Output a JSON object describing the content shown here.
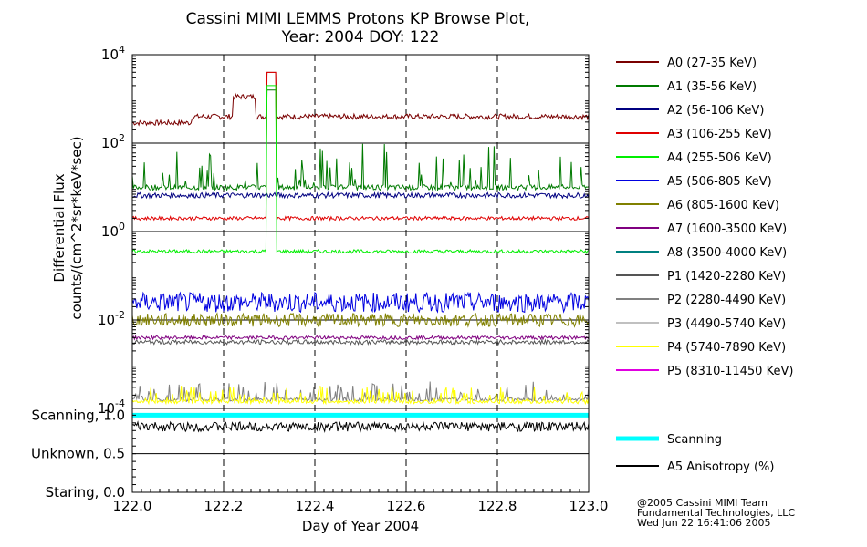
{
  "chart_data": {
    "type": "line",
    "title": "Cassini MIMI LEMMS Protons KP Browse Plot,",
    "subtitle": "Year: 2004 DOY: 122",
    "xlabel": "Day of Year 2004",
    "ylabel": "Differential Flux",
    "ylabel2": "counts/(cm^2*sr*keV*sec)",
    "xlim": [
      122.0,
      123.0
    ],
    "x_ticks": [
      "122.0",
      "122.2",
      "122.4",
      "122.6",
      "122.8",
      "123.0"
    ],
    "ylim_log": [
      -4,
      4
    ],
    "y_ticks": [
      {
        "base": "10",
        "exp": "4"
      },
      {
        "base": "10",
        "exp": "2"
      },
      {
        "base": "10",
        "exp": "0"
      },
      {
        "base": "10",
        "exp": "-2"
      },
      {
        "base": "10",
        "exp": "-4"
      }
    ],
    "status_labels": [
      "Scanning, 1.0",
      "Unknown, 0.5",
      "Staring, 0.0"
    ],
    "legend_position": "right",
    "series": [
      {
        "name": "A0 (27-35 KeV)",
        "color": "#7a0000",
        "level": 2.6
      },
      {
        "name": "A1 (35-56 KeV)",
        "color": "#007a00",
        "level": 1.0
      },
      {
        "name": "A2 (56-106 KeV)",
        "color": "#000080",
        "level": 0.82
      },
      {
        "name": "A3 (106-255 KeV)",
        "color": "#e00000",
        "level": 0.3
      },
      {
        "name": "A4 (255-506 KeV)",
        "color": "#00ee00",
        "level": -0.45
      },
      {
        "name": "A5 (506-805 KeV)",
        "color": "#0000e0",
        "level": -1.6
      },
      {
        "name": "A6 (805-1600 KeV)",
        "color": "#808000",
        "level": -2.0
      },
      {
        "name": "A7 (1600-3500 KeV)",
        "color": "#800080",
        "level": -2.4
      },
      {
        "name": "A8 (3500-4000 KeV)",
        "color": "#008080",
        "level": null
      },
      {
        "name": "P1 (1420-2280 KeV)",
        "color": "#555555",
        "level": -2.5
      },
      {
        "name": "P2 (2280-4490 KeV)",
        "color": "#808080",
        "level": -3.8
      },
      {
        "name": "P3 (4490-5740 KeV)",
        "color": "#c0c0c0",
        "level": null
      },
      {
        "name": "P4 (5740-7890 KeV)",
        "color": "#ffff00",
        "level": -3.85
      },
      {
        "name": "P5 (8310-11450 KeV)",
        "color": "#e000e0",
        "level": null
      }
    ],
    "status_series": [
      {
        "name": "Scanning",
        "color": "#00ffff",
        "value": 1.0
      },
      {
        "name": "A5 Anisotropy (%)",
        "color": "#000000",
        "value": 0.85
      }
    ],
    "grid": true
  },
  "credits": [
    "@2005 Cassini MIMI Team",
    "Fundamental Technologies, LLC",
    "Wed Jun 22 16:41:06 2005"
  ]
}
